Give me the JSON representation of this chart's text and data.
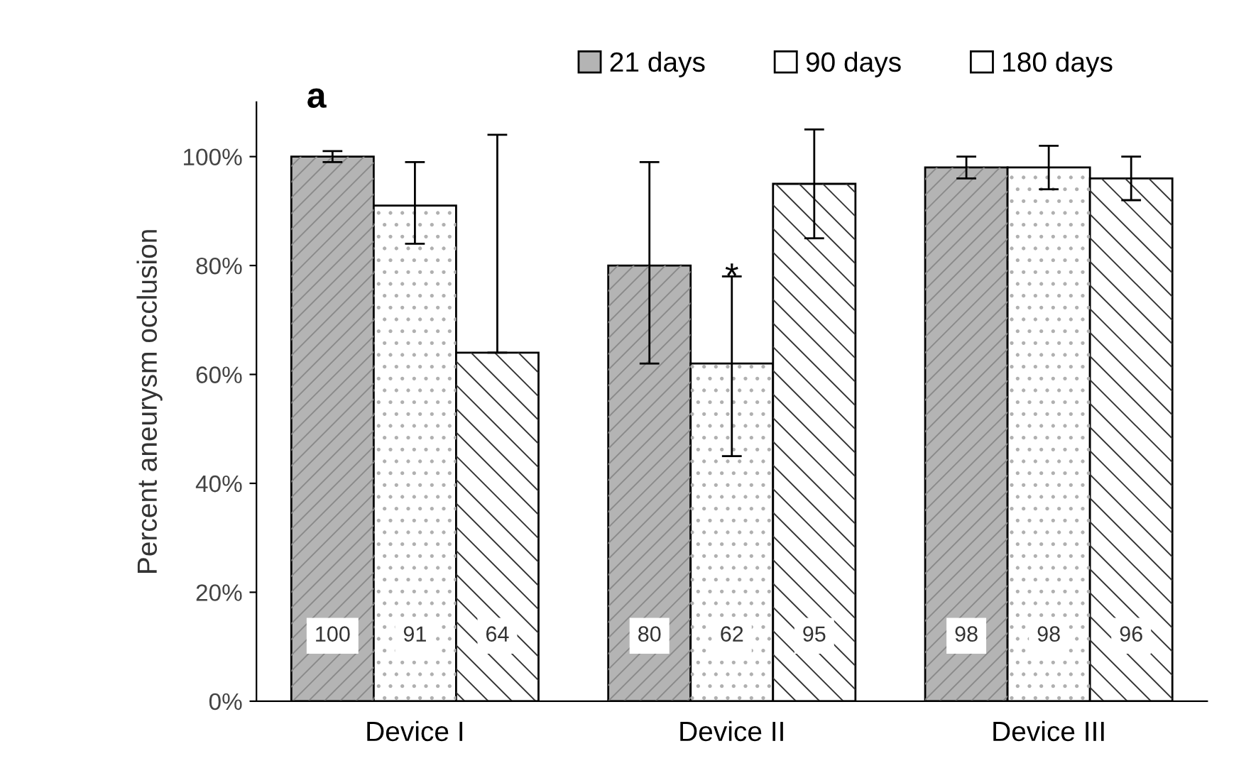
{
  "chart_data": {
    "type": "bar",
    "ylabel": "Percent aneurysm occlusion",
    "categories": [
      "Device I",
      "Device II",
      "Device III"
    ],
    "series": [
      {
        "name": "21 days",
        "color": "#b4b4b4",
        "values": [
          100,
          80,
          98
        ],
        "errors": [
          1,
          [
            62,
            99
          ],
          [
            96,
            100
          ]
        ]
      },
      {
        "name": "90 days",
        "color": "#ffffff",
        "values": [
          91,
          62,
          98
        ],
        "errors": [
          [
            84,
            99
          ],
          [
            45,
            78
          ],
          [
            94,
            102
          ]
        ]
      },
      {
        "name": "180 days",
        "color": "#ffffff",
        "values": [
          64,
          95,
          96
        ],
        "errors": [
          [
            64,
            104
          ],
          [
            85,
            105
          ],
          [
            92,
            100
          ]
        ]
      }
    ],
    "ylim": [
      0,
      110
    ],
    "yticks": [
      {
        "value": 0,
        "label": "0%"
      },
      {
        "value": 20,
        "label": "20%"
      },
      {
        "value": 40,
        "label": "40%"
      },
      {
        "value": 60,
        "label": "60%"
      },
      {
        "value": 80,
        "label": "80%"
      },
      {
        "value": 100,
        "label": "100%"
      }
    ],
    "data_labels": true,
    "legend": "top",
    "grid": false,
    "annotations": [
      "a",
      "*"
    ]
  }
}
